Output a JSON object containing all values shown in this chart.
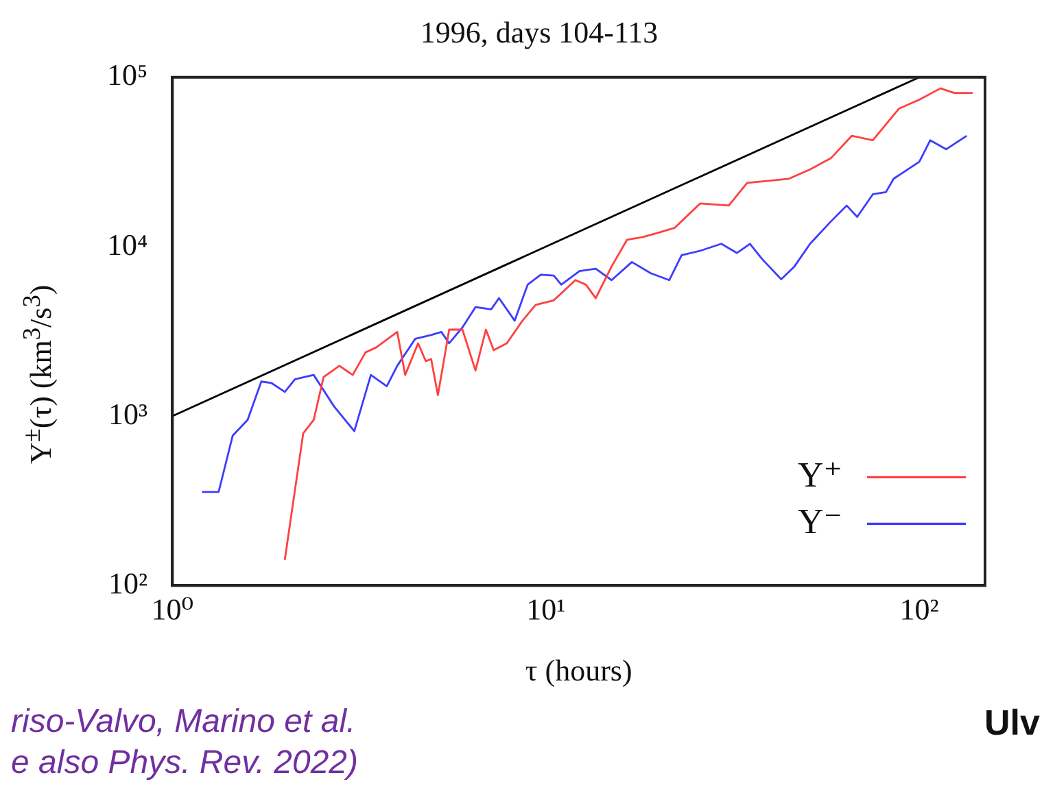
{
  "chart_data": {
    "type": "line",
    "title": "1996, days 104-113",
    "xlabel": "τ (hours)",
    "ylabel": "Y$^{±}$(τ) (km$^{3}$/s$^{3}$)",
    "log": "xy",
    "grid": false,
    "legend": "bottom right",
    "marker": "none",
    "line_style": "solid",
    "xlim": [
      1,
      150
    ],
    "xticks": [
      {
        "value": 1,
        "label": "10⁰"
      },
      {
        "value": 10,
        "label": "10¹"
      },
      {
        "value": 100,
        "label": "10²"
      }
    ],
    "ylim": [
      100,
      100000
    ],
    "yticks": [
      {
        "value": 100,
        "label": "10²"
      },
      {
        "value": 1000,
        "label": "10³"
      },
      {
        "value": 10000,
        "label": "10⁴"
      },
      {
        "value": 100000,
        "label": "10⁵"
      }
    ],
    "series": [
      {
        "color": "#000000",
        "x": [
          1,
          100
        ],
        "values": [
          1000,
          100000
        ]
      },
      {
        "name": "Y⁺",
        "color": "#ff4040",
        "x": [
          2.0,
          2.24,
          2.39,
          2.54,
          2.8,
          3.04,
          3.29,
          3.51,
          4.0,
          4.2,
          4.55,
          4.77,
          4.93,
          5.14,
          5.51,
          5.98,
          6.48,
          6.91,
          7.25,
          7.86,
          8.66,
          9.39,
          10.5,
          12.0,
          12.8,
          13.6,
          15.0,
          16.5,
          18.2,
          20.0,
          22.1,
          25.9,
          30.9,
          34.6,
          39.4,
          44.8,
          51.0,
          58.0,
          66.0,
          75.1,
          88.2,
          100,
          114,
          124,
          139
        ],
        "values": [
          142,
          791,
          950,
          1700,
          1980,
          1750,
          2380,
          2540,
          3140,
          1750,
          2690,
          2110,
          2170,
          1330,
          3240,
          3240,
          1860,
          3240,
          2450,
          2690,
          3660,
          4540,
          4820,
          6350,
          5970,
          4970,
          7640,
          11000,
          11400,
          12100,
          12900,
          18000,
          17500,
          23800,
          24500,
          25200,
          28600,
          33300,
          45200,
          42500,
          65300,
          73800,
          86100,
          80900,
          80900
        ]
      },
      {
        "name": "Y⁻",
        "color": "#3d3dff",
        "x": [
          1.2,
          1.33,
          1.45,
          1.59,
          1.73,
          1.84,
          2.0,
          2.13,
          2.39,
          2.71,
          3.07,
          3.4,
          3.75,
          4.0,
          4.47,
          4.93,
          5.25,
          5.51,
          5.98,
          6.48,
          7.14,
          7.49,
          8.25,
          8.94,
          9.69,
          10.5,
          11.0,
          12.3,
          13.6,
          15.0,
          17.0,
          19.1,
          21.4,
          23.1,
          25.9,
          29.5,
          32.5,
          35.2,
          38.1,
          42.7,
          46.3,
          51.0,
          58.0,
          63.9,
          68.2,
          75.1,
          81.4,
          85.4,
          100,
          107,
          118,
          134
        ],
        "values": [
          357,
          357,
          766,
          950,
          1600,
          1570,
          1390,
          1650,
          1750,
          1140,
          815,
          1750,
          1500,
          1980,
          2860,
          3010,
          3140,
          2690,
          3340,
          4400,
          4270,
          4970,
          3660,
          5970,
          6840,
          6760,
          5970,
          7180,
          7410,
          6350,
          8120,
          6970,
          6350,
          8910,
          9460,
          10400,
          9180,
          10400,
          8370,
          6430,
          7640,
          10400,
          14100,
          17500,
          15000,
          20400,
          21000,
          25200,
          31700,
          42500,
          37600,
          45200
        ]
      }
    ],
    "annotations": [
      "riso-Valvo, Marino et al.",
      "e also Phys. Rev. 2022)",
      "Ulv"
    ]
  }
}
